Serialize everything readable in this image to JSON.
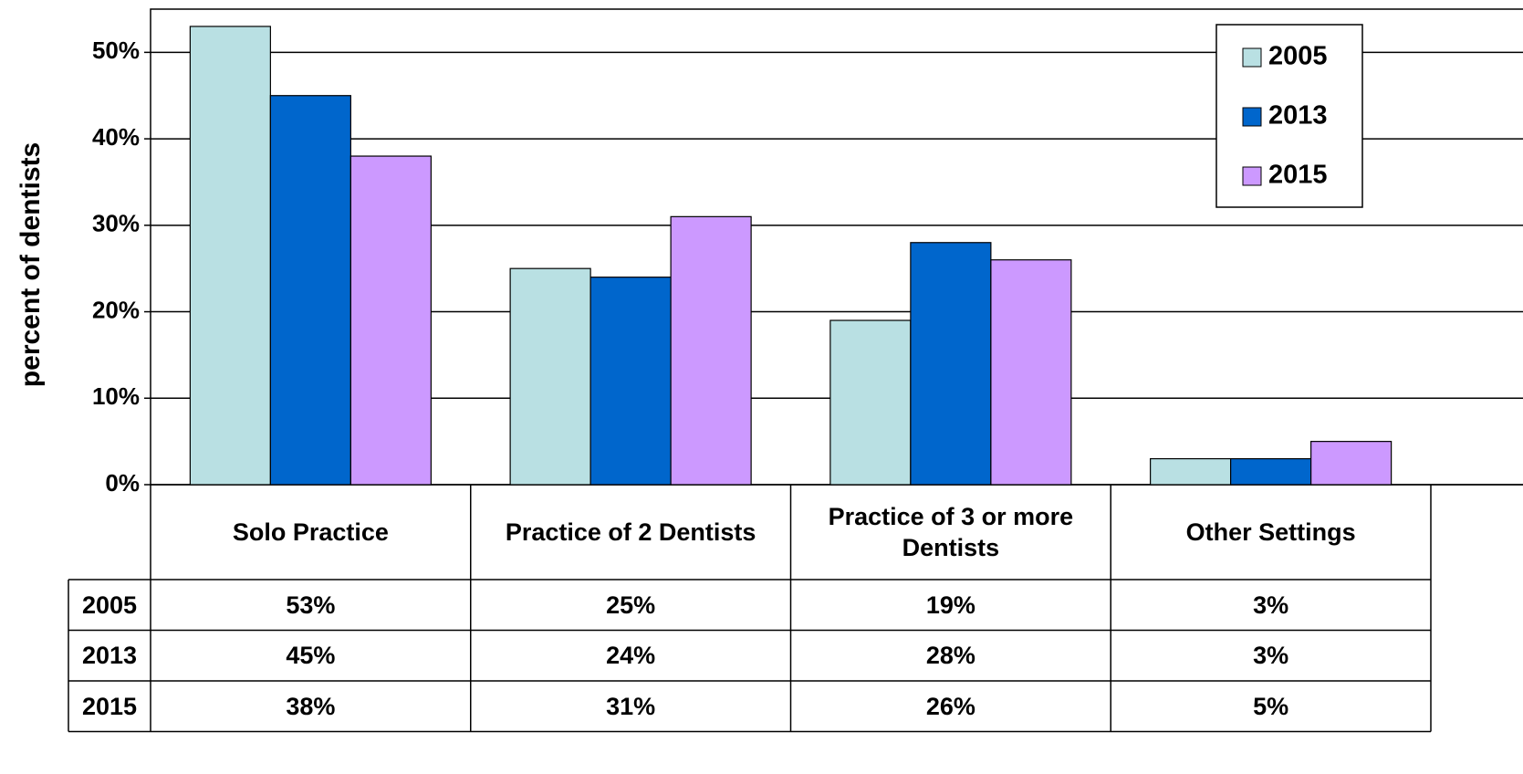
{
  "chart_data": {
    "type": "bar",
    "y_label": "percent of dentists",
    "categories": [
      "Solo Practice",
      "Practice of 2 Dentists",
      "Practice of 3 or more Dentists",
      "Other Settings"
    ],
    "series": [
      {
        "name": "2005",
        "color": "#b9e0e3",
        "values": [
          53,
          25,
          19,
          3
        ],
        "value_labels": [
          "53%",
          "25%",
          "19%",
          "3%"
        ]
      },
      {
        "name": "2013",
        "color": "#0066cc",
        "values": [
          45,
          24,
          28,
          3
        ],
        "value_labels": [
          "45%",
          "24%",
          "28%",
          "3%"
        ]
      },
      {
        "name": "2015",
        "color": "#cc99ff",
        "values": [
          38,
          31,
          26,
          5
        ],
        "value_labels": [
          "38%",
          "31%",
          "26%",
          "5%"
        ]
      }
    ],
    "ylim": [
      0,
      55
    ],
    "yticks": [
      {
        "value": 0,
        "label": "0%"
      },
      {
        "value": 10,
        "label": "10%"
      },
      {
        "value": 20,
        "label": "20%"
      },
      {
        "value": 30,
        "label": "30%"
      },
      {
        "value": 40,
        "label": "40%"
      },
      {
        "value": 50,
        "label": "50%"
      }
    ],
    "grid": true,
    "legend": "upper right"
  }
}
